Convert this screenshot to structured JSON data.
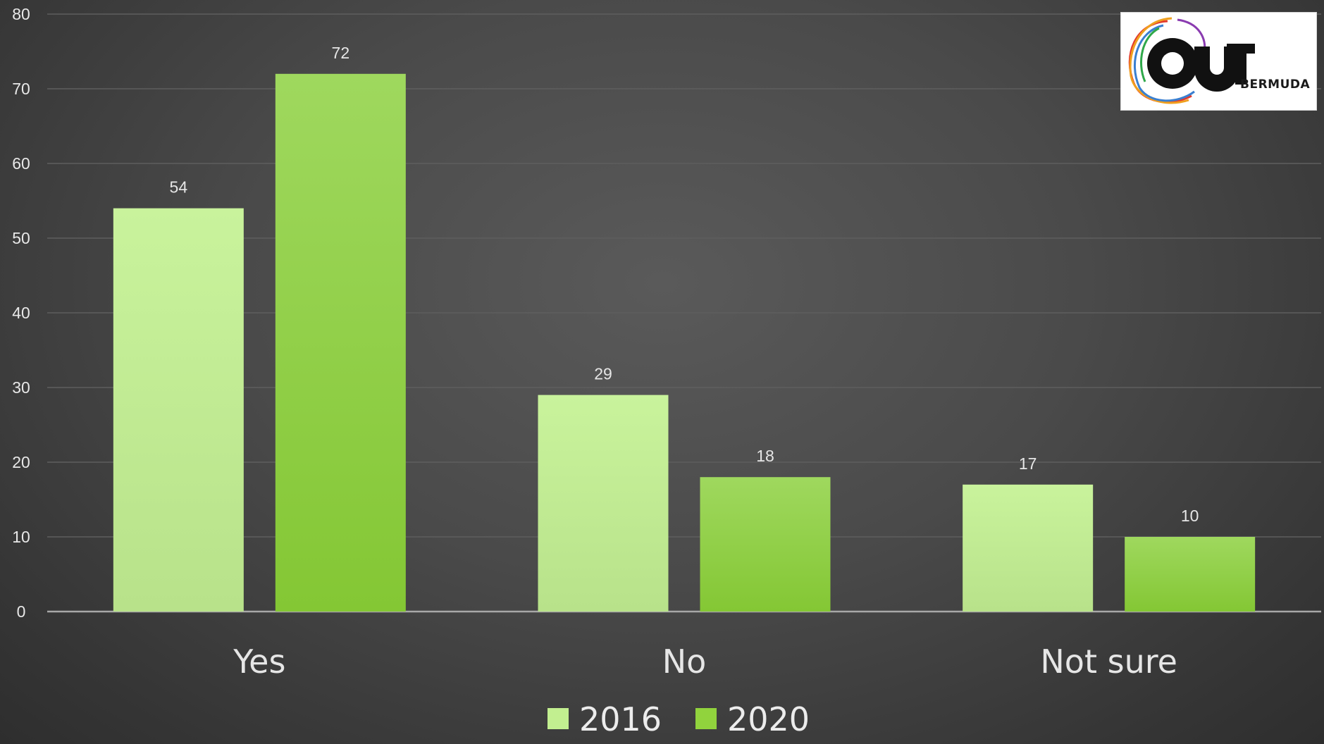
{
  "chart_data": {
    "type": "bar",
    "categories": [
      "Yes",
      "No",
      "Not sure"
    ],
    "series": [
      {
        "name": "2016",
        "values": [
          54,
          29,
          17
        ],
        "color": "#c2ef90"
      },
      {
        "name": "2020",
        "values": [
          72,
          18,
          10
        ],
        "color": "#91d33d"
      }
    ],
    "yticks": [
      0,
      10,
      20,
      30,
      40,
      50,
      60,
      70,
      80
    ],
    "ylim": [
      0,
      80
    ],
    "grid": true,
    "legend_position": "bottom",
    "data_labels": true,
    "background": "#4a4a4a"
  },
  "logo": {
    "alt": "OUT Bermuda logo",
    "text": "BERMUDA"
  }
}
